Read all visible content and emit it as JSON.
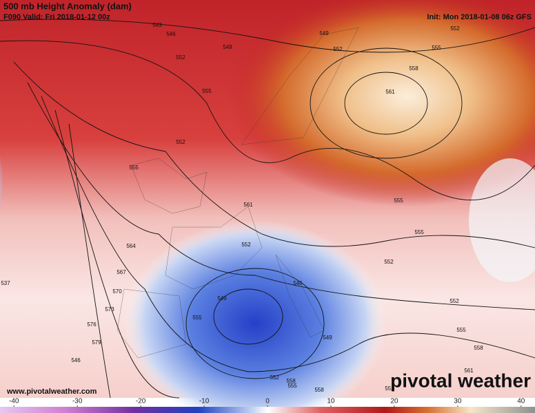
{
  "header": {
    "title": "500 mb Height Anomaly (dam)",
    "valid": "F090 Valid: Fri 2018-01-12 00z",
    "init": "Init: Mon 2018-01-08 06z GFS"
  },
  "map": {
    "contour_labels": [
      543,
      546,
      549,
      552,
      549,
      552,
      555,
      558,
      561,
      552,
      555,
      552,
      555,
      561,
      564,
      567,
      570,
      573,
      576,
      579,
      546,
      546,
      549,
      552,
      555,
      555,
      552,
      552,
      555,
      558,
      561,
      555,
      558,
      537,
      549,
      552,
      555,
      558,
      552
    ]
  },
  "footer": {
    "website": "www.pivotalweather.com",
    "logo": "pivotal weather"
  },
  "colorbar": {
    "range": [
      -42.2,
      42.2
    ],
    "ticks": [
      -40,
      -30,
      -20,
      -10,
      0,
      10,
      20,
      30,
      40
    ]
  }
}
